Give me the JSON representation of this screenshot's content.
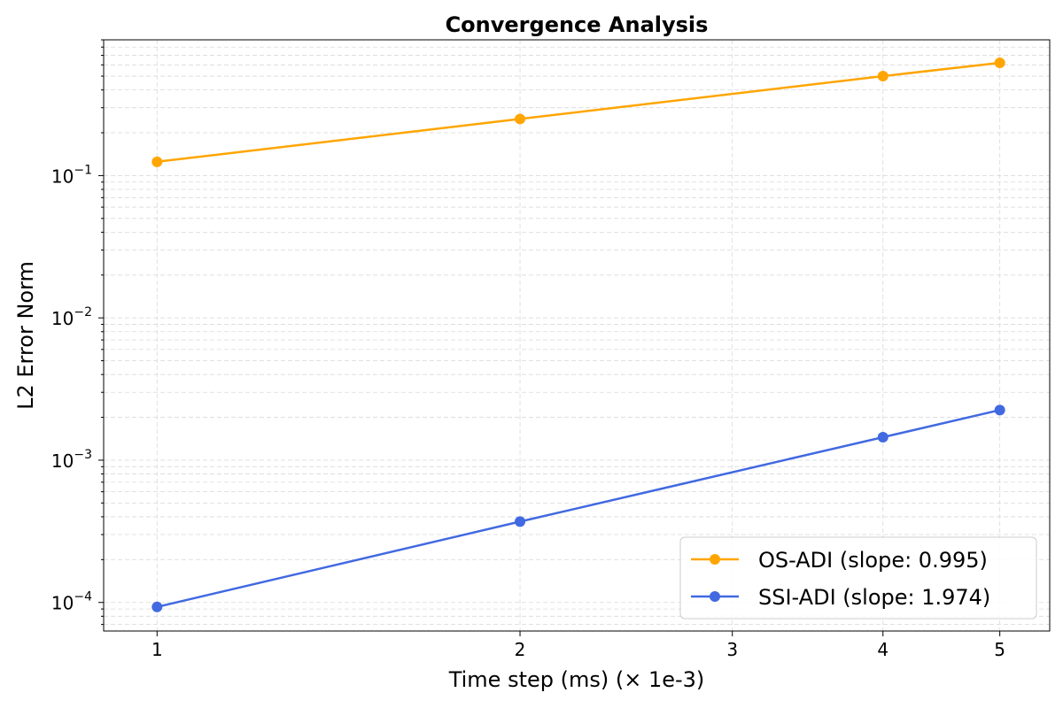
{
  "chart_data": {
    "type": "line",
    "title": "Convergence Analysis",
    "xlabel": "Time step (ms) (× 1e-3)",
    "ylabel": "L2 Error Norm",
    "x_scale": "log",
    "y_scale": "log",
    "x_ticks": [
      1,
      2,
      3,
      4,
      5
    ],
    "x_tick_labels": [
      "1",
      "2",
      "3",
      "4",
      "5"
    ],
    "y_ticks": [
      0.0001,
      0.001,
      0.01,
      0.1
    ],
    "y_tick_labels": [
      {
        "base": "10",
        "exp": "−4"
      },
      {
        "base": "10",
        "exp": "−3"
      },
      {
        "base": "10",
        "exp": "−2"
      },
      {
        "base": "10",
        "exp": "−1"
      }
    ],
    "xlim": [
      0.903,
      5.5
    ],
    "ylim": [
      6.3e-05,
      0.9
    ],
    "grid": true,
    "legend_position": "lower-right",
    "series": [
      {
        "name": "OS-ADI (slope: 0.995)",
        "color": "#FFA500",
        "x": [
          1,
          2,
          4,
          5
        ],
        "y": [
          0.125,
          0.25,
          0.5,
          0.62
        ]
      },
      {
        "name": "SSI-ADI (slope: 1.974)",
        "color": "#4169E1",
        "x": [
          1,
          2,
          4,
          5
        ],
        "y": [
          9.3e-05,
          0.00037,
          0.00145,
          0.00225
        ]
      }
    ]
  }
}
